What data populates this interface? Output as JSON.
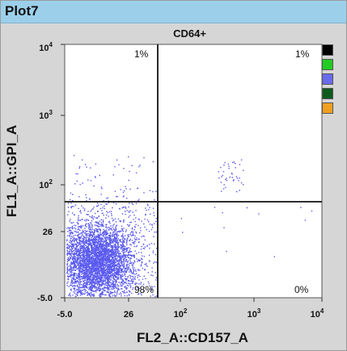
{
  "window": {
    "title": "Plot7"
  },
  "plot": {
    "gate_label": "CD64+",
    "x_axis_label": "FL2_A::CD157_A",
    "y_axis_label": "FL1_A::GPI_A",
    "x_ticks": [
      {
        "label": "-5.0",
        "sup": ""
      },
      {
        "label": "26",
        "sup": ""
      },
      {
        "label": "10",
        "sup": "2"
      },
      {
        "label": "10",
        "sup": "3"
      },
      {
        "label": "10",
        "sup": "4"
      }
    ],
    "y_ticks": [
      {
        "label": "-5.0",
        "sup": ""
      },
      {
        "label": "26",
        "sup": ""
      },
      {
        "label": "10",
        "sup": "2"
      },
      {
        "label": "10",
        "sup": "3"
      },
      {
        "label": "10",
        "sup": "4"
      }
    ],
    "quadrants": {
      "upper_left": "1%",
      "upper_right": "1%",
      "lower_left": "98%",
      "lower_right": "0%"
    },
    "event_color": "#5a5aee"
  },
  "legend_swatches": [
    {
      "name": "black",
      "color": "#000000"
    },
    {
      "name": "green",
      "color": "#22cc22"
    },
    {
      "name": "blue",
      "color": "#6a6aee"
    },
    {
      "name": "dark-green",
      "color": "#0d5a1e"
    },
    {
      "name": "orange",
      "color": "#f0a020"
    }
  ]
}
